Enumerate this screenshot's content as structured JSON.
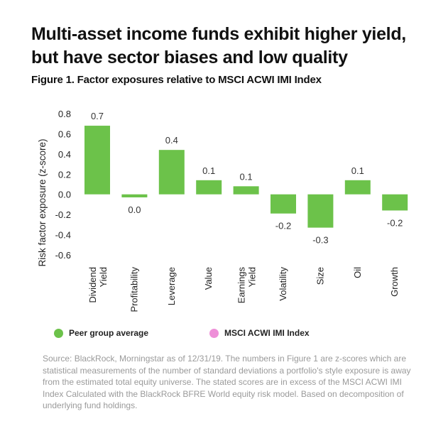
{
  "header": {
    "title": "Multi-asset income funds exhibit higher yield, but have sector biases and low quality",
    "subtitle": "Figure 1. Factor exposures relative to MSCI ACWI IMI Index"
  },
  "chart_data": {
    "type": "bar",
    "ylabel": "Risk factor exposure (z-score)",
    "ylim": [
      -0.6,
      0.8
    ],
    "yticks": [
      "0.8",
      "0.6",
      "0.4",
      "0.2",
      "0.0",
      "-0.2",
      "-0.4",
      "-0.6"
    ],
    "ytick_values": [
      0.8,
      0.6,
      0.4,
      0.2,
      0.0,
      -0.2,
      -0.4,
      -0.6
    ],
    "grid": false,
    "categories": [
      "Dividend Yield",
      "Profitability",
      "Leverage",
      "Value",
      "Earnings Yield",
      "Volatility",
      "Size",
      "Oil",
      "Growth"
    ],
    "category_lines": [
      [
        "Dividend",
        "Yield"
      ],
      [
        "Profitability"
      ],
      [
        "Leverage"
      ],
      [
        "Value"
      ],
      [
        "Earnings",
        "Yield"
      ],
      [
        "Volatility"
      ],
      [
        "Size"
      ],
      [
        "Oil"
      ],
      [
        "Growth"
      ]
    ],
    "series": [
      {
        "name": "Peer group average",
        "color": "#6cc24a",
        "values": [
          0.68,
          -0.03,
          0.44,
          0.14,
          0.08,
          -0.19,
          -0.33,
          0.14,
          -0.16
        ],
        "data_labels": [
          "0.7",
          "0.0",
          "0.4",
          "0.1",
          "0.1",
          "-0.2",
          "-0.3",
          "0.1",
          "-0.2"
        ]
      }
    ],
    "legend": [
      {
        "label": "Peer group average",
        "color": "#6cc24a"
      },
      {
        "label": "MSCI ACWI IMI Index",
        "color": "#ee8fd8"
      }
    ],
    "legend_position": "bottom"
  },
  "footer": {
    "source": "Source: BlackRock, Morningstar as of 12/31/19. The numbers in Figure 1 are z-scores which are statistical measurements of the number of standard deviations a portfolio's style exposure is away from the estimated total equity universe. The stated scores are in excess of the MSCI ACWI IMI Index Calculated with the BlackRock BFRE World equity risk model. Based on decomposition of underlying fund holdings."
  }
}
